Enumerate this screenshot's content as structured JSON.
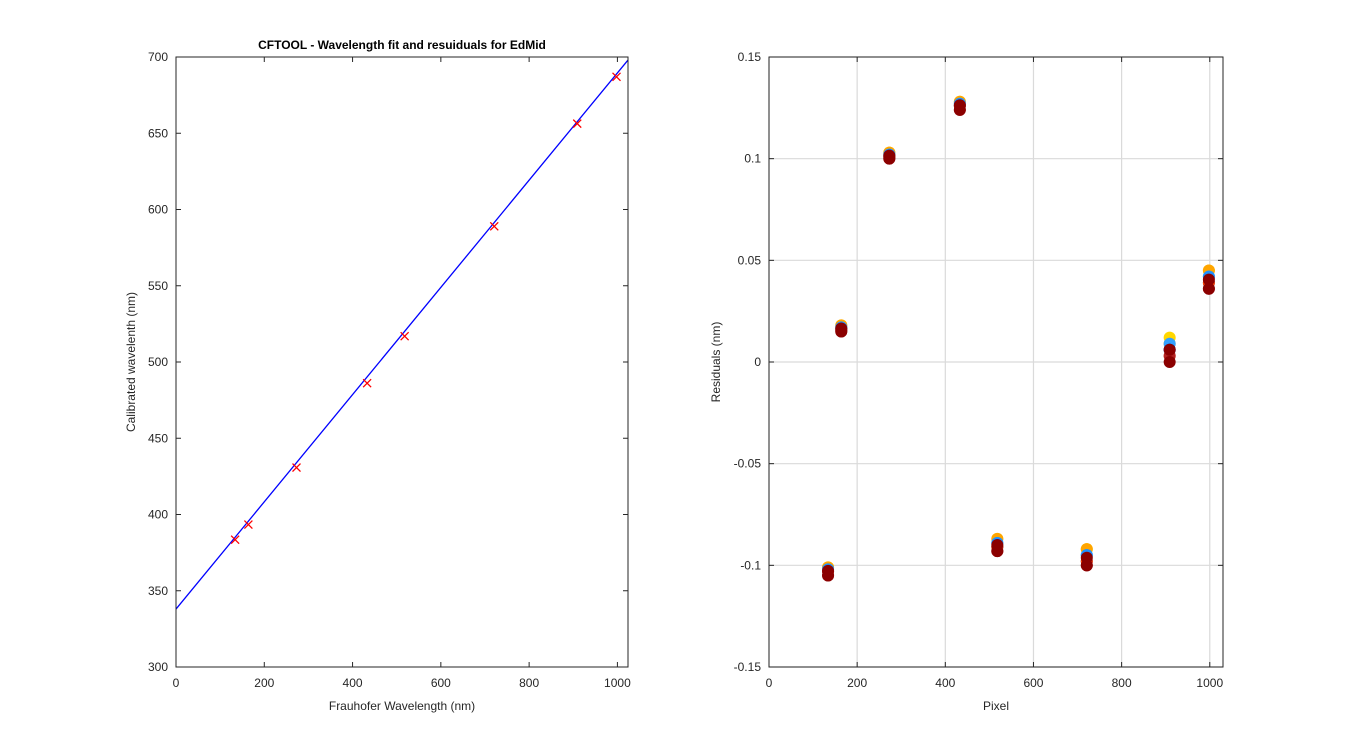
{
  "chart_data": [
    {
      "type": "scatter",
      "title": "CFTOOL - Wavelength fit and resuiduals for EdMid",
      "xlabel": "Frauhofer Wavelength (nm)",
      "ylabel": "Calibrated wavelenth (nm)",
      "xlim": [
        0,
        1024
      ],
      "ylim": [
        300,
        700
      ],
      "xticks": [
        0,
        200,
        400,
        600,
        800,
        1000
      ],
      "yticks": [
        300,
        350,
        400,
        450,
        500,
        550,
        600,
        650,
        700
      ],
      "grid": false,
      "series": [
        {
          "kind": "line",
          "color": "#0000FF",
          "x": [
            0,
            1024
          ],
          "y": [
            338,
            698
          ]
        },
        {
          "kind": "markers",
          "marker": "x",
          "color": "#FF0000",
          "x": [
            134,
            164,
            273,
            433,
            518,
            721,
            909,
            998
          ],
          "y": [
            383.5,
            393.4,
            430.8,
            486.1,
            516.9,
            589.0,
            656.3,
            687.0
          ]
        }
      ]
    },
    {
      "type": "scatter",
      "xlabel": "Pixel",
      "ylabel": "Residuals  (nm)",
      "xlim": [
        0,
        1030
      ],
      "ylim": [
        -0.15,
        0.15
      ],
      "xticks": [
        0,
        200,
        400,
        600,
        800,
        1000
      ],
      "yticks": [
        -0.15,
        -0.1,
        -0.05,
        0,
        0.05,
        0.1,
        0.15
      ],
      "grid": true,
      "marker_colors": [
        "#FFD700",
        "#FFA500",
        "#33A1FF",
        "#1E90FF",
        "#000080",
        "#FF4500",
        "#B22222",
        "#8B0000"
      ],
      "points": [
        {
          "x": 134,
          "y": [
            -0.105,
            -0.103,
            -0.102,
            -0.101
          ]
        },
        {
          "x": 164,
          "y": [
            0.015,
            0.016,
            0.017,
            0.018
          ]
        },
        {
          "x": 273,
          "y": [
            0.1,
            0.101,
            0.102,
            0.103
          ]
        },
        {
          "x": 433,
          "y": [
            0.124,
            0.126,
            0.127,
            0.128
          ]
        },
        {
          "x": 518,
          "y": [
            -0.093,
            -0.091,
            -0.089,
            -0.087
          ]
        },
        {
          "x": 721,
          "y": [
            -0.1,
            -0.098,
            -0.095,
            -0.092
          ]
        },
        {
          "x": 909,
          "y": [
            0,
            0.003,
            0.006,
            0.009,
            0.012
          ]
        },
        {
          "x": 998,
          "y": [
            0.036,
            0.039,
            0.042,
            0.045
          ]
        }
      ]
    }
  ]
}
